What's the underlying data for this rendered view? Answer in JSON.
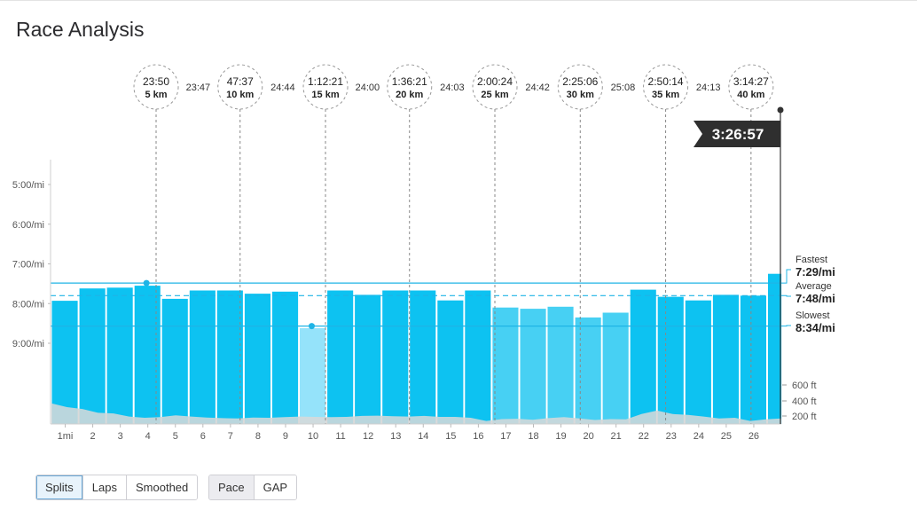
{
  "page": {
    "title": "Race Analysis"
  },
  "controls": {
    "view_group": [
      {
        "label": "Splits",
        "active": true
      },
      {
        "label": "Laps",
        "active": false
      },
      {
        "label": "Smoothed",
        "active": false
      }
    ],
    "metric_group": [
      {
        "label": "Pace",
        "active": true
      },
      {
        "label": "GAP",
        "active": false
      }
    ]
  },
  "chart_data": {
    "type": "bar",
    "title": "",
    "xlabel": "",
    "ylabel": "",
    "x_unit_first_label": "1mi",
    "categories": [
      "1",
      "2",
      "3",
      "4",
      "5",
      "6",
      "7",
      "8",
      "9",
      "10",
      "11",
      "12",
      "13",
      "14",
      "15",
      "16",
      "17",
      "18",
      "19",
      "20",
      "21",
      "22",
      "23",
      "24",
      "25",
      "26"
    ],
    "x_tick_labels": [
      "1mi",
      "2",
      "3",
      "4",
      "5",
      "6",
      "7",
      "8",
      "9",
      "10",
      "11",
      "12",
      "13",
      "14",
      "15",
      "16",
      "17",
      "18",
      "19",
      "20",
      "21",
      "22",
      "23",
      "24",
      "25",
      "26"
    ],
    "pace_min_per_mi": [
      7.93,
      7.62,
      7.6,
      7.55,
      7.88,
      7.67,
      7.67,
      7.75,
      7.7,
      8.62,
      7.67,
      7.78,
      7.67,
      7.67,
      7.92,
      7.67,
      8.1,
      8.13,
      8.08,
      8.35,
      8.23,
      7.65,
      7.83,
      7.92,
      7.78,
      7.8,
      7.25
    ],
    "final_partial_segment": true,
    "y_axis": {
      "ticks": [
        "5:00/mi",
        "6:00/mi",
        "7:00/mi",
        "8:00/mi",
        "9:00/mi"
      ],
      "tick_values": [
        5,
        6,
        7,
        8,
        9
      ],
      "inverted": true,
      "range": [
        4.0,
        11.0
      ]
    },
    "reference_lines": [
      {
        "label": "Fastest",
        "value_label": "7:29/mi",
        "value": 7.483
      },
      {
        "label": "Average",
        "value_label": "7:48/mi",
        "value": 7.8,
        "dashed": true
      },
      {
        "label": "Slowest",
        "value_label": "8:34/mi",
        "value": 8.567
      }
    ],
    "elevation": {
      "unit": "ft",
      "ticks": [
        "600 ft",
        "400 ft",
        "200 ft"
      ],
      "tick_values": [
        600,
        400,
        200
      ],
      "profile_ft": [
        600,
        480,
        420,
        300,
        280,
        180,
        140,
        160,
        220,
        180,
        150,
        130,
        120,
        150,
        140,
        160,
        180,
        170,
        160,
        170,
        200,
        210,
        190,
        180,
        200,
        170,
        170,
        140,
        40,
        100,
        110,
        80,
        130,
        160,
        120,
        70,
        100,
        90,
        260,
        370,
        260,
        230,
        180,
        120,
        140,
        40,
        90,
        120
      ]
    },
    "splits": [
      {
        "time": "23:50",
        "distance": "5 km",
        "mile": 3.8
      },
      {
        "time": "47:37",
        "distance": "10 km",
        "mile": 6.85
      },
      {
        "time": "1:12:21",
        "distance": "15 km",
        "mile": 9.95
      },
      {
        "time": "1:36:21",
        "distance": "20 km",
        "mile": 13.0
      },
      {
        "time": "2:00:24",
        "distance": "25 km",
        "mile": 16.1
      },
      {
        "time": "2:25:06",
        "distance": "30 km",
        "mile": 19.2
      },
      {
        "time": "2:50:14",
        "distance": "35 km",
        "mile": 22.3
      },
      {
        "time": "3:14:27",
        "distance": "40 km",
        "mile": 25.4
      }
    ],
    "segment_times": [
      "23:47",
      "24:44",
      "24:00",
      "24:03",
      "24:42",
      "25:08",
      "24:13"
    ],
    "finish_time": "3:26:57",
    "colors": {
      "bar": "#00bff0",
      "bar_mid": "#3dcdf2",
      "bar_light": "#8fe1fa",
      "line": "#1fb4e6",
      "elevation": "#dcdcdc",
      "flag": "#2f2f2f"
    }
  }
}
